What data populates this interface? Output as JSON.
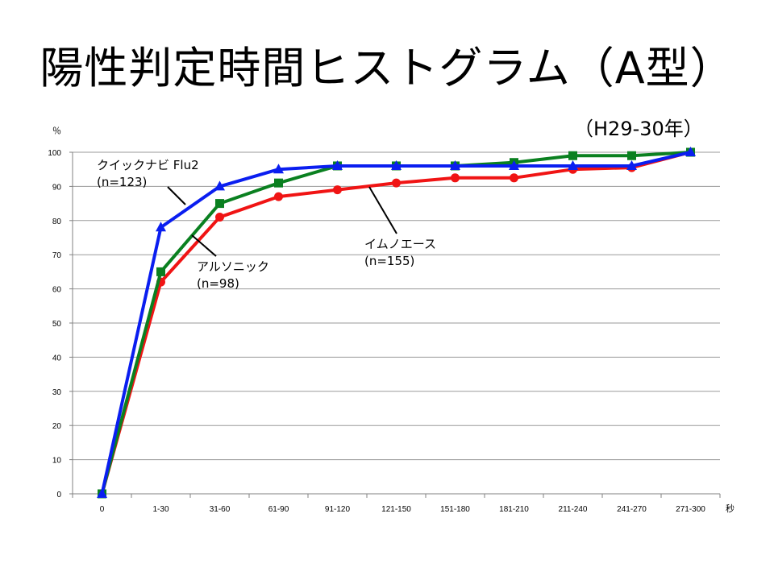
{
  "slide": {
    "title": "陽性判定時間ヒストグラム（A型）",
    "subtitle": "（H29-30年）"
  },
  "chart_data": {
    "type": "line",
    "x": [
      "0",
      "1-30",
      "31-60",
      "61-90",
      "91-120",
      "121-150",
      "151-180",
      "181-210",
      "211-240",
      "241-270",
      "271-300"
    ],
    "xunit": "秒",
    "yunit": "％",
    "ylim": [
      0,
      100
    ],
    "yticks": [
      0,
      10,
      20,
      30,
      40,
      50,
      60,
      70,
      80,
      90,
      100
    ],
    "grid": true,
    "series": [
      {
        "label": [
          "クイックナビ Flu2",
          "(n=123)"
        ],
        "color": "#0a1ef0",
        "marker": "triangle",
        "values": [
          0,
          78,
          90,
          95,
          96,
          96,
          96,
          96,
          96,
          96,
          100
        ]
      },
      {
        "label": [
          "アルソニック",
          "(n=98)"
        ],
        "color": "#0a8020",
        "marker": "square",
        "values": [
          0,
          65,
          85,
          91,
          96,
          96,
          96,
          97,
          99,
          99,
          100
        ]
      },
      {
        "label": [
          "イムノエース",
          "(n=155)"
        ],
        "color": "#f01414",
        "marker": "circle",
        "values": [
          0,
          62,
          81,
          87,
          89,
          91,
          92.5,
          92.5,
          95,
          95.5,
          100
        ]
      }
    ]
  }
}
